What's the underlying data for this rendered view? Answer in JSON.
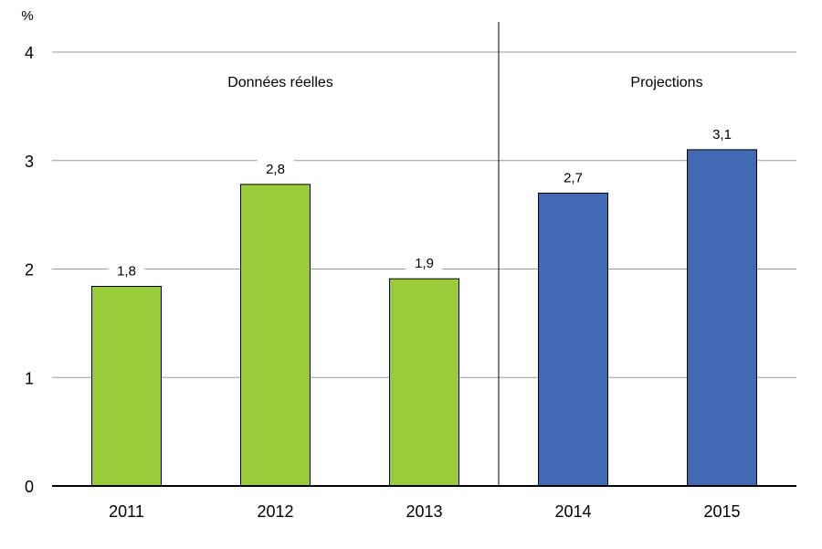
{
  "chart_data": {
    "type": "bar",
    "ylabel": "%",
    "categories": [
      "2011",
      "2012",
      "2013",
      "2014",
      "2015"
    ],
    "values": [
      1.84,
      2.78,
      1.91,
      2.7,
      3.1
    ],
    "data_labels": [
      "1,8",
      "2,8",
      "1,9",
      "2,7",
      "3,1"
    ],
    "bar_colors": [
      "#9acb3a",
      "#9acb3a",
      "#9acb3a",
      "#4169b4",
      "#4169b4"
    ],
    "ylim": [
      0,
      4
    ],
    "yticks": [
      "0",
      "1",
      "2",
      "3",
      "4"
    ],
    "grid": true,
    "section_labels": [
      "Données réelles",
      "Projections"
    ],
    "section_divider_after_category": "2013"
  }
}
